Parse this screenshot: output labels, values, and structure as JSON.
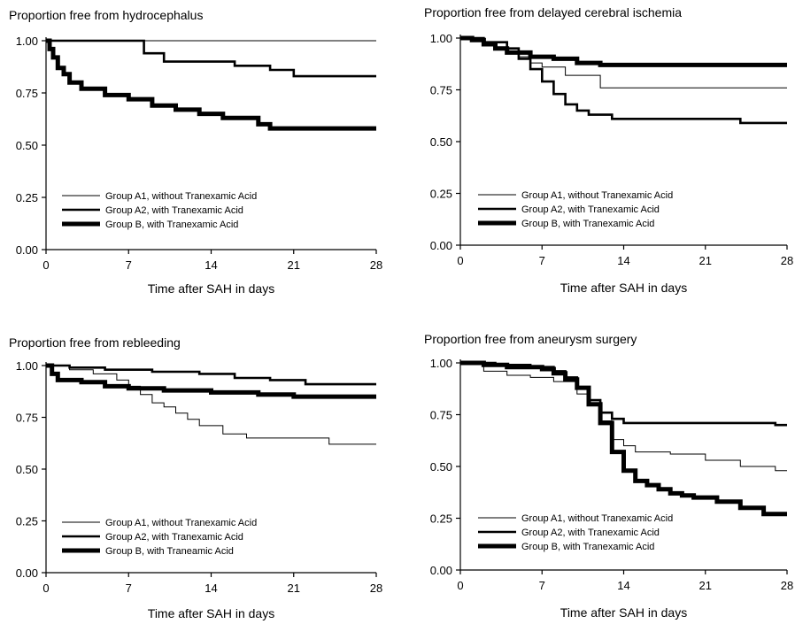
{
  "chart_data": [
    {
      "type": "line",
      "title": "Proportion free from hydrocephalus",
      "xlabel": "Time after SAH in days",
      "ylabel": "",
      "xlim": [
        0,
        28
      ],
      "ylim": [
        0,
        1
      ],
      "x_ticks": [
        "0",
        "7",
        "14",
        "21",
        "28"
      ],
      "y_ticks": [
        "0.00",
        "0.25",
        "0.50",
        "0.75",
        "1.00"
      ],
      "grid": false,
      "legend_position": "bottom-left",
      "series": [
        {
          "name": "Group A1, without Tranexamic Acid",
          "style": "thin",
          "x": [
            0,
            28
          ],
          "y": [
            1.0,
            1.0
          ]
        },
        {
          "name": "Group A2, with Tranexamic Acid",
          "style": "medium",
          "x": [
            0,
            8,
            8.3,
            10,
            16,
            19,
            21,
            28
          ],
          "y": [
            1.0,
            1.0,
            0.94,
            0.9,
            0.88,
            0.86,
            0.83,
            0.83
          ]
        },
        {
          "name": "Group B, with Tranexamic Acid",
          "style": "thick",
          "x": [
            0,
            0.3,
            0.6,
            1,
            1.5,
            2,
            3,
            5,
            7,
            9,
            11,
            13,
            15,
            18,
            19,
            28
          ],
          "y": [
            1.0,
            0.96,
            0.92,
            0.87,
            0.84,
            0.8,
            0.77,
            0.74,
            0.72,
            0.69,
            0.67,
            0.65,
            0.63,
            0.6,
            0.58,
            0.58
          ]
        }
      ]
    },
    {
      "type": "line",
      "title": "Proportion free from delayed cerebral ischemia",
      "xlabel": "Time after SAH in days",
      "ylabel": "",
      "xlim": [
        0,
        28
      ],
      "ylim": [
        0,
        1
      ],
      "x_ticks": [
        "0",
        "7",
        "14",
        "21",
        "28"
      ],
      "y_ticks": [
        "0.00",
        "0.25",
        "0.50",
        "0.75",
        "1.00"
      ],
      "grid": false,
      "legend_position": "bottom-left",
      "series": [
        {
          "name": "Group A1, without Tranexamic Acid",
          "style": "thin",
          "x": [
            0,
            2,
            4,
            5,
            6,
            7,
            9,
            12,
            28
          ],
          "y": [
            1.0,
            0.98,
            0.95,
            0.91,
            0.88,
            0.86,
            0.82,
            0.76,
            0.76
          ]
        },
        {
          "name": "Group A2, with Tranexamic Acid",
          "style": "medium",
          "x": [
            0,
            2,
            4,
            5,
            6,
            7,
            8,
            9,
            10,
            11,
            13,
            24,
            28
          ],
          "y": [
            1.0,
            0.98,
            0.95,
            0.9,
            0.85,
            0.79,
            0.73,
            0.68,
            0.65,
            0.63,
            0.61,
            0.59,
            0.59
          ]
        },
        {
          "name": "Group B, with Tranexamic Acid",
          "style": "thick",
          "x": [
            0,
            1,
            2,
            3,
            4,
            6,
            8,
            10,
            12,
            28
          ],
          "y": [
            1.0,
            0.99,
            0.97,
            0.95,
            0.93,
            0.91,
            0.9,
            0.88,
            0.87,
            0.87
          ]
        }
      ]
    },
    {
      "type": "line",
      "title": "Proportion free from rebleeding",
      "xlabel": "Time after SAH in days",
      "ylabel": "",
      "xlim": [
        0,
        28
      ],
      "ylim": [
        0,
        1
      ],
      "x_ticks": [
        "0",
        "7",
        "14",
        "21",
        "28"
      ],
      "y_ticks": [
        "0.00",
        "0.25",
        "0.50",
        "0.75",
        "1.00"
      ],
      "grid": false,
      "legend_position": "bottom-left",
      "series": [
        {
          "name": "Group A1, without Tranexamic Acid",
          "style": "thin",
          "x": [
            0,
            2,
            4,
            6,
            7,
            8,
            9,
            10,
            11,
            12,
            13,
            15,
            17,
            24,
            28
          ],
          "y": [
            1.0,
            0.98,
            0.96,
            0.93,
            0.9,
            0.86,
            0.82,
            0.8,
            0.77,
            0.74,
            0.71,
            0.67,
            0.65,
            0.62,
            0.62
          ]
        },
        {
          "name": "Group A2, with Tranexamic Acid",
          "style": "medium",
          "x": [
            0,
            2,
            5,
            9,
            13,
            16,
            19,
            22,
            28
          ],
          "y": [
            1.0,
            0.99,
            0.98,
            0.97,
            0.96,
            0.94,
            0.93,
            0.91,
            0.91
          ]
        },
        {
          "name": "Group B, with Traneamic Acid",
          "style": "thick",
          "x": [
            0,
            0.5,
            1,
            3,
            5,
            7,
            10,
            14,
            18,
            21,
            28
          ],
          "y": [
            1.0,
            0.96,
            0.93,
            0.92,
            0.9,
            0.89,
            0.88,
            0.87,
            0.86,
            0.85,
            0.85
          ]
        }
      ]
    },
    {
      "type": "line",
      "title": "Proportion free from aneurysm surgery",
      "xlabel": "Time after SAH in days",
      "ylabel": "",
      "xlim": [
        0,
        28
      ],
      "ylim": [
        0,
        1
      ],
      "x_ticks": [
        "0",
        "7",
        "14",
        "21",
        "28"
      ],
      "y_ticks": [
        "0.00",
        "0.25",
        "0.50",
        "0.75",
        "1.00"
      ],
      "grid": false,
      "legend_position": "bottom-left",
      "series": [
        {
          "name": "Group A1, without Tranexamic Acid",
          "style": "thin",
          "x": [
            0,
            2,
            4,
            6,
            8,
            10,
            11,
            12,
            13,
            14,
            15,
            18,
            21,
            24,
            27,
            28
          ],
          "y": [
            1.0,
            0.96,
            0.94,
            0.93,
            0.91,
            0.85,
            0.8,
            0.72,
            0.63,
            0.6,
            0.57,
            0.56,
            0.53,
            0.5,
            0.48,
            0.48
          ]
        },
        {
          "name": "Group A2, with Tranexamic Acid",
          "style": "medium",
          "x": [
            0,
            3,
            6,
            8,
            9,
            10,
            11,
            12,
            13,
            14,
            27,
            28
          ],
          "y": [
            1.0,
            0.99,
            0.98,
            0.96,
            0.93,
            0.88,
            0.82,
            0.76,
            0.73,
            0.71,
            0.7,
            0.7
          ]
        },
        {
          "name": "Group B, with Tranexamic Acid",
          "style": "thick",
          "x": [
            0,
            2,
            4,
            7,
            8,
            9,
            10,
            11,
            12,
            13,
            14,
            15,
            16,
            17,
            18,
            19,
            20,
            22,
            24,
            26,
            28
          ],
          "y": [
            1.0,
            0.99,
            0.98,
            0.97,
            0.95,
            0.92,
            0.88,
            0.8,
            0.71,
            0.57,
            0.48,
            0.43,
            0.41,
            0.39,
            0.37,
            0.36,
            0.35,
            0.33,
            0.3,
            0.27,
            0.27
          ]
        }
      ]
    }
  ]
}
